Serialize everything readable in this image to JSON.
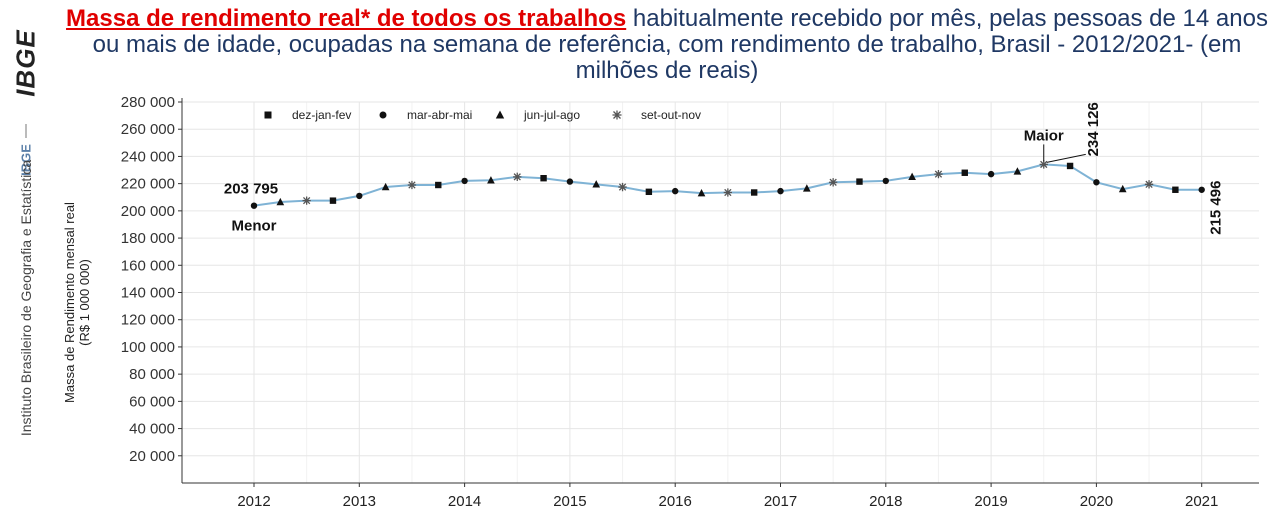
{
  "header": {
    "title_highlight": "Massa de rendimento real* de todos os trabalhos",
    "title_rest": " habitualmente recebido por mês, pelas pessoas de 14 anos ou mais de idade, ocupadas na semana de referência, com rendimento de trabalho, Brasil - 2012/2021- (em milhões de reais)"
  },
  "sidebar": {
    "logo_text": "IBGE",
    "vertical_label": "IBGE",
    "institute": "Instituto Brasileiro de Geografia e Estatística"
  },
  "colors": {
    "line": "#7fb3d5",
    "marker": "#111111",
    "title_highlight": "#e00000",
    "title": "#1f3864"
  },
  "chart_data": {
    "type": "line",
    "ylabel_lines": [
      "Massa de Rendimento mensal real",
      "(R$ 1 000 000)"
    ],
    "ylim": [
      0,
      280000
    ],
    "ytick_values": [
      20000,
      40000,
      60000,
      80000,
      100000,
      120000,
      140000,
      160000,
      180000,
      200000,
      220000,
      240000,
      260000,
      280000
    ],
    "ytick_labels": [
      "20 000",
      "40 000",
      "60 000",
      "80 000",
      "100 000",
      "120 000",
      "140 000",
      "160 000",
      "180 000",
      "200 000",
      "220 000",
      "240 000",
      "260 000",
      "280 000"
    ],
    "xtick_labels": [
      "2012",
      "2013",
      "2014",
      "2015",
      "2016",
      "2017",
      "2018",
      "2019",
      "2020",
      "2021"
    ],
    "grid": true,
    "legend_position": "top-left",
    "legend": [
      {
        "symbol": "square",
        "label": "dez-jan-fev"
      },
      {
        "symbol": "circle",
        "label": "mar-abr-mai"
      },
      {
        "symbol": "triangle",
        "label": "jun-jul-ago"
      },
      {
        "symbol": "star",
        "label": "set-out-nov"
      }
    ],
    "x_start": "mar-abr-mai 2012",
    "values": [
      203795,
      206500,
      207500,
      207500,
      211000,
      217500,
      219000,
      219000,
      222000,
      222500,
      225000,
      224000,
      221500,
      219500,
      217500,
      214000,
      214500,
      213000,
      213500,
      213500,
      214500,
      216500,
      221000,
      221500,
      222000,
      225000,
      227000,
      228000,
      227000,
      229000,
      234126,
      233000,
      221000,
      216000,
      219500,
      215500,
      215496
    ],
    "annotations": {
      "min_value_label": "203 795",
      "min_label": "Menor",
      "max_value_label": "234 126",
      "max_label": "Maior",
      "last_value_label": "215 496"
    }
  }
}
